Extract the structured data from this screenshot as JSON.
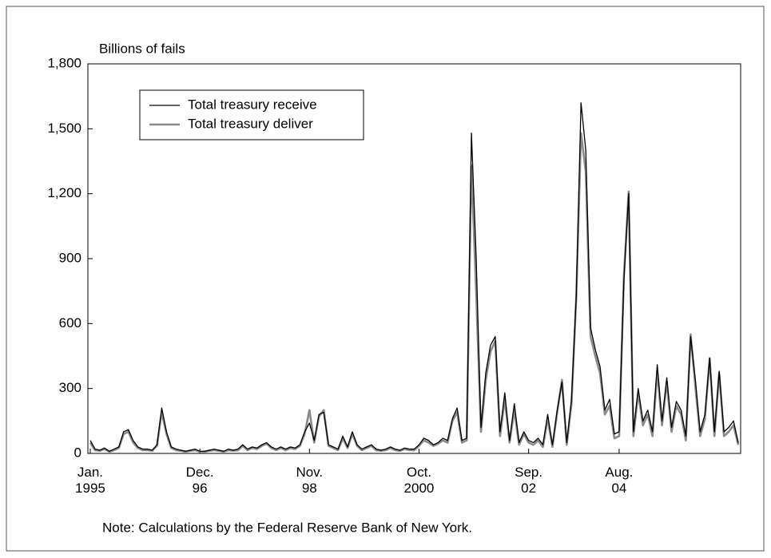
{
  "chart_data": {
    "type": "line",
    "y_axis_label": "Billions of fails",
    "note": "Note: Calculations by the Federal Reserve Bank of New York.",
    "categories": [
      "Jan.\n1995",
      null,
      null,
      null,
      null,
      null,
      null,
      null,
      null,
      null,
      null,
      null,
      null,
      null,
      null,
      null,
      null,
      null,
      null,
      null,
      null,
      null,
      null,
      "Dec.\n96",
      null,
      null,
      null,
      null,
      null,
      null,
      null,
      null,
      null,
      null,
      null,
      null,
      null,
      null,
      null,
      null,
      null,
      null,
      null,
      null,
      null,
      null,
      "Nov.\n98",
      null,
      null,
      null,
      null,
      null,
      null,
      null,
      null,
      null,
      null,
      null,
      null,
      null,
      null,
      null,
      null,
      null,
      null,
      null,
      null,
      null,
      null,
      "Oct.\n2000",
      null,
      null,
      null,
      null,
      null,
      null,
      null,
      null,
      null,
      null,
      null,
      null,
      null,
      null,
      null,
      null,
      null,
      null,
      null,
      null,
      null,
      null,
      "Sep.\n02",
      null,
      null,
      null,
      null,
      null,
      null,
      null,
      null,
      null,
      null,
      null,
      null,
      null,
      null,
      null,
      null,
      null,
      null,
      "Aug.\n04",
      null,
      null,
      null,
      null,
      null,
      null,
      null,
      null,
      null,
      null,
      null,
      null,
      null,
      null,
      null,
      null,
      null,
      null,
      null,
      null,
      null,
      null,
      null,
      null,
      null
    ],
    "series": [
      {
        "name": "Total treasury receive",
        "color": "#000000",
        "values": [
          60,
          20,
          15,
          25,
          10,
          20,
          30,
          100,
          110,
          60,
          30,
          20,
          20,
          15,
          40,
          210,
          100,
          30,
          20,
          15,
          10,
          15,
          20,
          10,
          10,
          15,
          20,
          15,
          10,
          20,
          15,
          20,
          40,
          20,
          30,
          25,
          40,
          50,
          30,
          20,
          30,
          20,
          30,
          25,
          40,
          100,
          140,
          60,
          180,
          190,
          40,
          30,
          20,
          80,
          30,
          100,
          40,
          20,
          30,
          40,
          20,
          15,
          20,
          30,
          20,
          15,
          25,
          20,
          20,
          40,
          70,
          60,
          40,
          50,
          70,
          60,
          160,
          210,
          60,
          70,
          1480,
          900,
          120,
          370,
          500,
          540,
          100,
          280,
          60,
          230,
          50,
          100,
          60,
          50,
          70,
          40,
          180,
          40,
          200,
          330,
          50,
          250,
          730,
          1620,
          1400,
          580,
          480,
          400,
          200,
          250,
          90,
          100,
          800,
          1200,
          100,
          300,
          150,
          200,
          100,
          410,
          150,
          350,
          120,
          240,
          200,
          80,
          540,
          340,
          100,
          180,
          440,
          100,
          380,
          100,
          120,
          150,
          50
        ]
      },
      {
        "name": "Total treasury deliver",
        "color": "#8a8a8a",
        "values": [
          50,
          15,
          12,
          20,
          8,
          15,
          25,
          90,
          100,
          50,
          25,
          15,
          15,
          12,
          35,
          190,
          90,
          25,
          15,
          12,
          8,
          12,
          15,
          8,
          8,
          12,
          15,
          12,
          8,
          15,
          12,
          15,
          35,
          15,
          25,
          20,
          35,
          45,
          25,
          15,
          25,
          15,
          25,
          20,
          35,
          90,
          200,
          50,
          170,
          200,
          35,
          25,
          15,
          70,
          25,
          90,
          35,
          15,
          25,
          35,
          15,
          12,
          15,
          25,
          15,
          12,
          20,
          15,
          15,
          35,
          60,
          50,
          35,
          45,
          60,
          50,
          150,
          190,
          50,
          60,
          1330,
          740,
          100,
          340,
          470,
          520,
          80,
          250,
          50,
          200,
          40,
          90,
          50,
          40,
          60,
          30,
          160,
          30,
          190,
          340,
          40,
          230,
          720,
          1480,
          1300,
          540,
          450,
          370,
          180,
          220,
          70,
          80,
          820,
          1210,
          80,
          280,
          130,
          180,
          80,
          380,
          130,
          330,
          100,
          220,
          180,
          60,
          550,
          310,
          80,
          160,
          440,
          80,
          370,
          80,
          100,
          130,
          40
        ]
      }
    ],
    "ylim": [
      0,
      1800
    ],
    "yticks": [
      0,
      300,
      600,
      900,
      {
        "value": 1200,
        "label": "1,200"
      },
      {
        "value": 1500,
        "label": "1,500"
      },
      {
        "value": 1800,
        "label": "1,800"
      }
    ],
    "legend": "upper-left"
  }
}
